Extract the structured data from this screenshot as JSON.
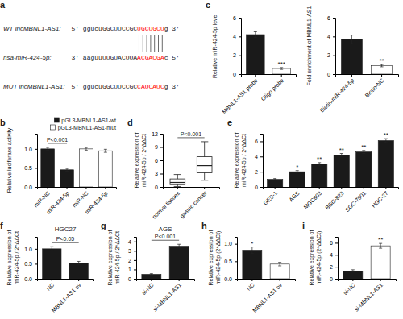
{
  "chart_data": [
    {
      "type": "sequence",
      "panel": "a",
      "annotations": [
        {
          "label": "WT lncMBNL1-AS1:",
          "segments": [
            {
              "text": "5' ggucuGGCUUCCGC"
            },
            {
              "text": "UGCUGCU",
              "color": "red"
            },
            {
              "text": "g 3'"
            }
          ]
        },
        {
          "label": "hsa-miR-424-5p:",
          "segments": [
            {
              "text": "3' aaguuUUGUACUUA"
            },
            {
              "text": "ACGACGA",
              "color": "red"
            },
            {
              "text": "c 5'"
            }
          ]
        },
        {
          "label": "MUT lncMBNL1-AS1:",
          "segments": [
            {
              "text": "5' ggucuGGCUUCCGC"
            },
            {
              "text": "CAUCAUC",
              "color": "red"
            },
            {
              "text": "g 3'"
            }
          ]
        }
      ]
    },
    {
      "type": "bar",
      "panel": "b",
      "categories": [
        "miR-NC",
        "miR-424-5p",
        "miR-NC",
        "miR-424-5p"
      ],
      "series": [
        {
          "name": "pGL3-MBNL1-AS1-wt",
          "color": "#1a1a1a",
          "values": [
            1.0,
            0.45,
            null,
            null
          ],
          "errors": [
            0.04,
            0.04,
            null,
            null
          ]
        },
        {
          "name": "pGL3-MBNL1-AS1-mut",
          "color": "#ffffff",
          "values": [
            null,
            null,
            1.0,
            0.95
          ],
          "errors": [
            null,
            null,
            0.04,
            0.04
          ]
        }
      ],
      "ylabel": "Relative luciferase activity",
      "ylim": [
        0,
        1.4
      ],
      "yticks": [
        {
          "value": 0,
          "label": "0.0"
        },
        0.5,
        {
          "value": 1,
          "label": "1.0"
        }
      ],
      "legend": "upper right",
      "annotations": [
        {
          "text": "P<0.001",
          "between": [
            0,
            1
          ]
        }
      ]
    },
    {
      "type": "bar",
      "panel": "c",
      "categories": [
        "MBNL1-AS1 probe",
        "Oligo probe"
      ],
      "values": [
        4.2,
        0.6
      ],
      "errors": [
        0.3,
        0.1
      ],
      "colors": [
        "#1a1a1a",
        "#ffffff"
      ],
      "ylabel": "Relative miR-424-5p level",
      "ylim": [
        0,
        6
      ],
      "yticks": [
        0,
        2,
        4,
        6
      ],
      "significance": [
        null,
        "***"
      ]
    },
    {
      "type": "bar",
      "categories": [
        "Biotin-miR-424-5p",
        "Biotin-NC"
      ],
      "values": [
        3.7,
        0.9
      ],
      "errors": [
        0.45,
        0.12
      ],
      "colors": [
        "#1a1a1a",
        "#ffffff"
      ],
      "ylabel": "Fold enrichment of MBNL1-AS1",
      "ylim": [
        0,
        6
      ],
      "yticks": [
        0,
        2,
        4,
        6
      ],
      "significance": [
        null,
        "**"
      ]
    },
    {
      "type": "box",
      "panel": "d",
      "categories": [
        "normal tissues",
        "gastric cancer"
      ],
      "boxes": [
        {
          "low": 0.1,
          "q1": 0.5,
          "median": 1.0,
          "q3": 1.8,
          "high": 2.8
        },
        {
          "low": 1.5,
          "q1": 3.2,
          "median": 4.8,
          "q3": 6.8,
          "high": 10.2
        }
      ],
      "ylabel": "Relative expression of\nmiR-424-5p / 2^ΔΔCt",
      "ylim": [
        0,
        12
      ],
      "yticks": [
        0,
        3,
        6,
        9,
        12
      ],
      "annotations": [
        {
          "text": "P<0.001",
          "between": [
            0,
            1
          ]
        }
      ]
    },
    {
      "type": "bar",
      "panel": "e",
      "categories": [
        "GES-1",
        "AGS",
        "MGC803",
        "BGC-823",
        "SGC-7901",
        "HGC-27"
      ],
      "values": [
        1.0,
        2.0,
        3.0,
        4.2,
        4.6,
        6.1
      ],
      "errors": [
        0.1,
        0.15,
        0.2,
        0.2,
        0.2,
        0.25
      ],
      "color": "#1a1a1a",
      "ylabel": "Relative expression of\nmiR-424-5p / 2^ΔΔCt",
      "ylim": [
        0,
        7
      ],
      "yticks": [
        0,
        2,
        4,
        6
      ],
      "significance": [
        null,
        "*",
        "**",
        "**",
        "**",
        "**"
      ]
    },
    {
      "type": "bar",
      "panel": "f",
      "title": "HGC27",
      "categories": [
        "NC",
        "MBNL1-AS1 ov"
      ],
      "values": [
        1.0,
        0.52
      ],
      "errors": [
        0.07,
        0.06
      ],
      "color": "#1a1a1a",
      "ylabel": "Relative expression of\nmiR-424-5p / 2^ΔΔCt",
      "ylim": [
        0,
        1.4
      ],
      "yticks": [
        {
          "value": 0,
          "label": "0.0"
        },
        0.5,
        {
          "value": 1,
          "label": "1.0"
        }
      ],
      "annotations": [
        {
          "text": "P<0.05",
          "between": [
            0,
            1
          ]
        }
      ]
    },
    {
      "type": "bar",
      "panel": "g",
      "title": "AGS",
      "categories": [
        "si-NC",
        "si-MBNL1-AS1"
      ],
      "values": [
        0.48,
        3.5
      ],
      "errors": [
        0.07,
        0.2
      ],
      "color": "#1a1a1a",
      "ylabel": "Relative expression of\nmiR-424-5p / 2^ΔΔCt",
      "ylim": [
        0,
        4.5
      ],
      "yticks": [
        0,
        1,
        2,
        3,
        4
      ],
      "annotations": [
        {
          "text": "P<0.001",
          "between": [
            0,
            1
          ]
        }
      ]
    },
    {
      "type": "bar",
      "panel": "h",
      "categories": [
        "NC",
        "MBNL1-AS1 ov"
      ],
      "values": [
        0.82,
        0.42
      ],
      "errors": [
        0.09,
        0.05
      ],
      "colors": [
        "#1a1a1a",
        "#ffffff"
      ],
      "ylabel": "Relative expression of\nmiR-424-5p (2^ΔΔCt)",
      "ylim": [
        0,
        1.2
      ],
      "yticks": [
        {
          "value": 0,
          "label": "0.0"
        },
        0.5,
        {
          "value": 1,
          "label": "1.0"
        }
      ],
      "significance": [
        "*",
        null
      ]
    },
    {
      "type": "bar",
      "panel": "i",
      "categories": [
        "si-NC",
        "si-MBNL1-AS1"
      ],
      "values": [
        1.3,
        5.5
      ],
      "errors": [
        0.2,
        0.4
      ],
      "colors": [
        "#1a1a1a",
        "#ffffff"
      ],
      "ylabel": "Relative expression of\nmiR-424-5p (2^ΔΔCt)",
      "ylim": [
        0,
        7
      ],
      "yticks": [
        0,
        2,
        4,
        6
      ],
      "significance": [
        null,
        "**"
      ]
    }
  ]
}
